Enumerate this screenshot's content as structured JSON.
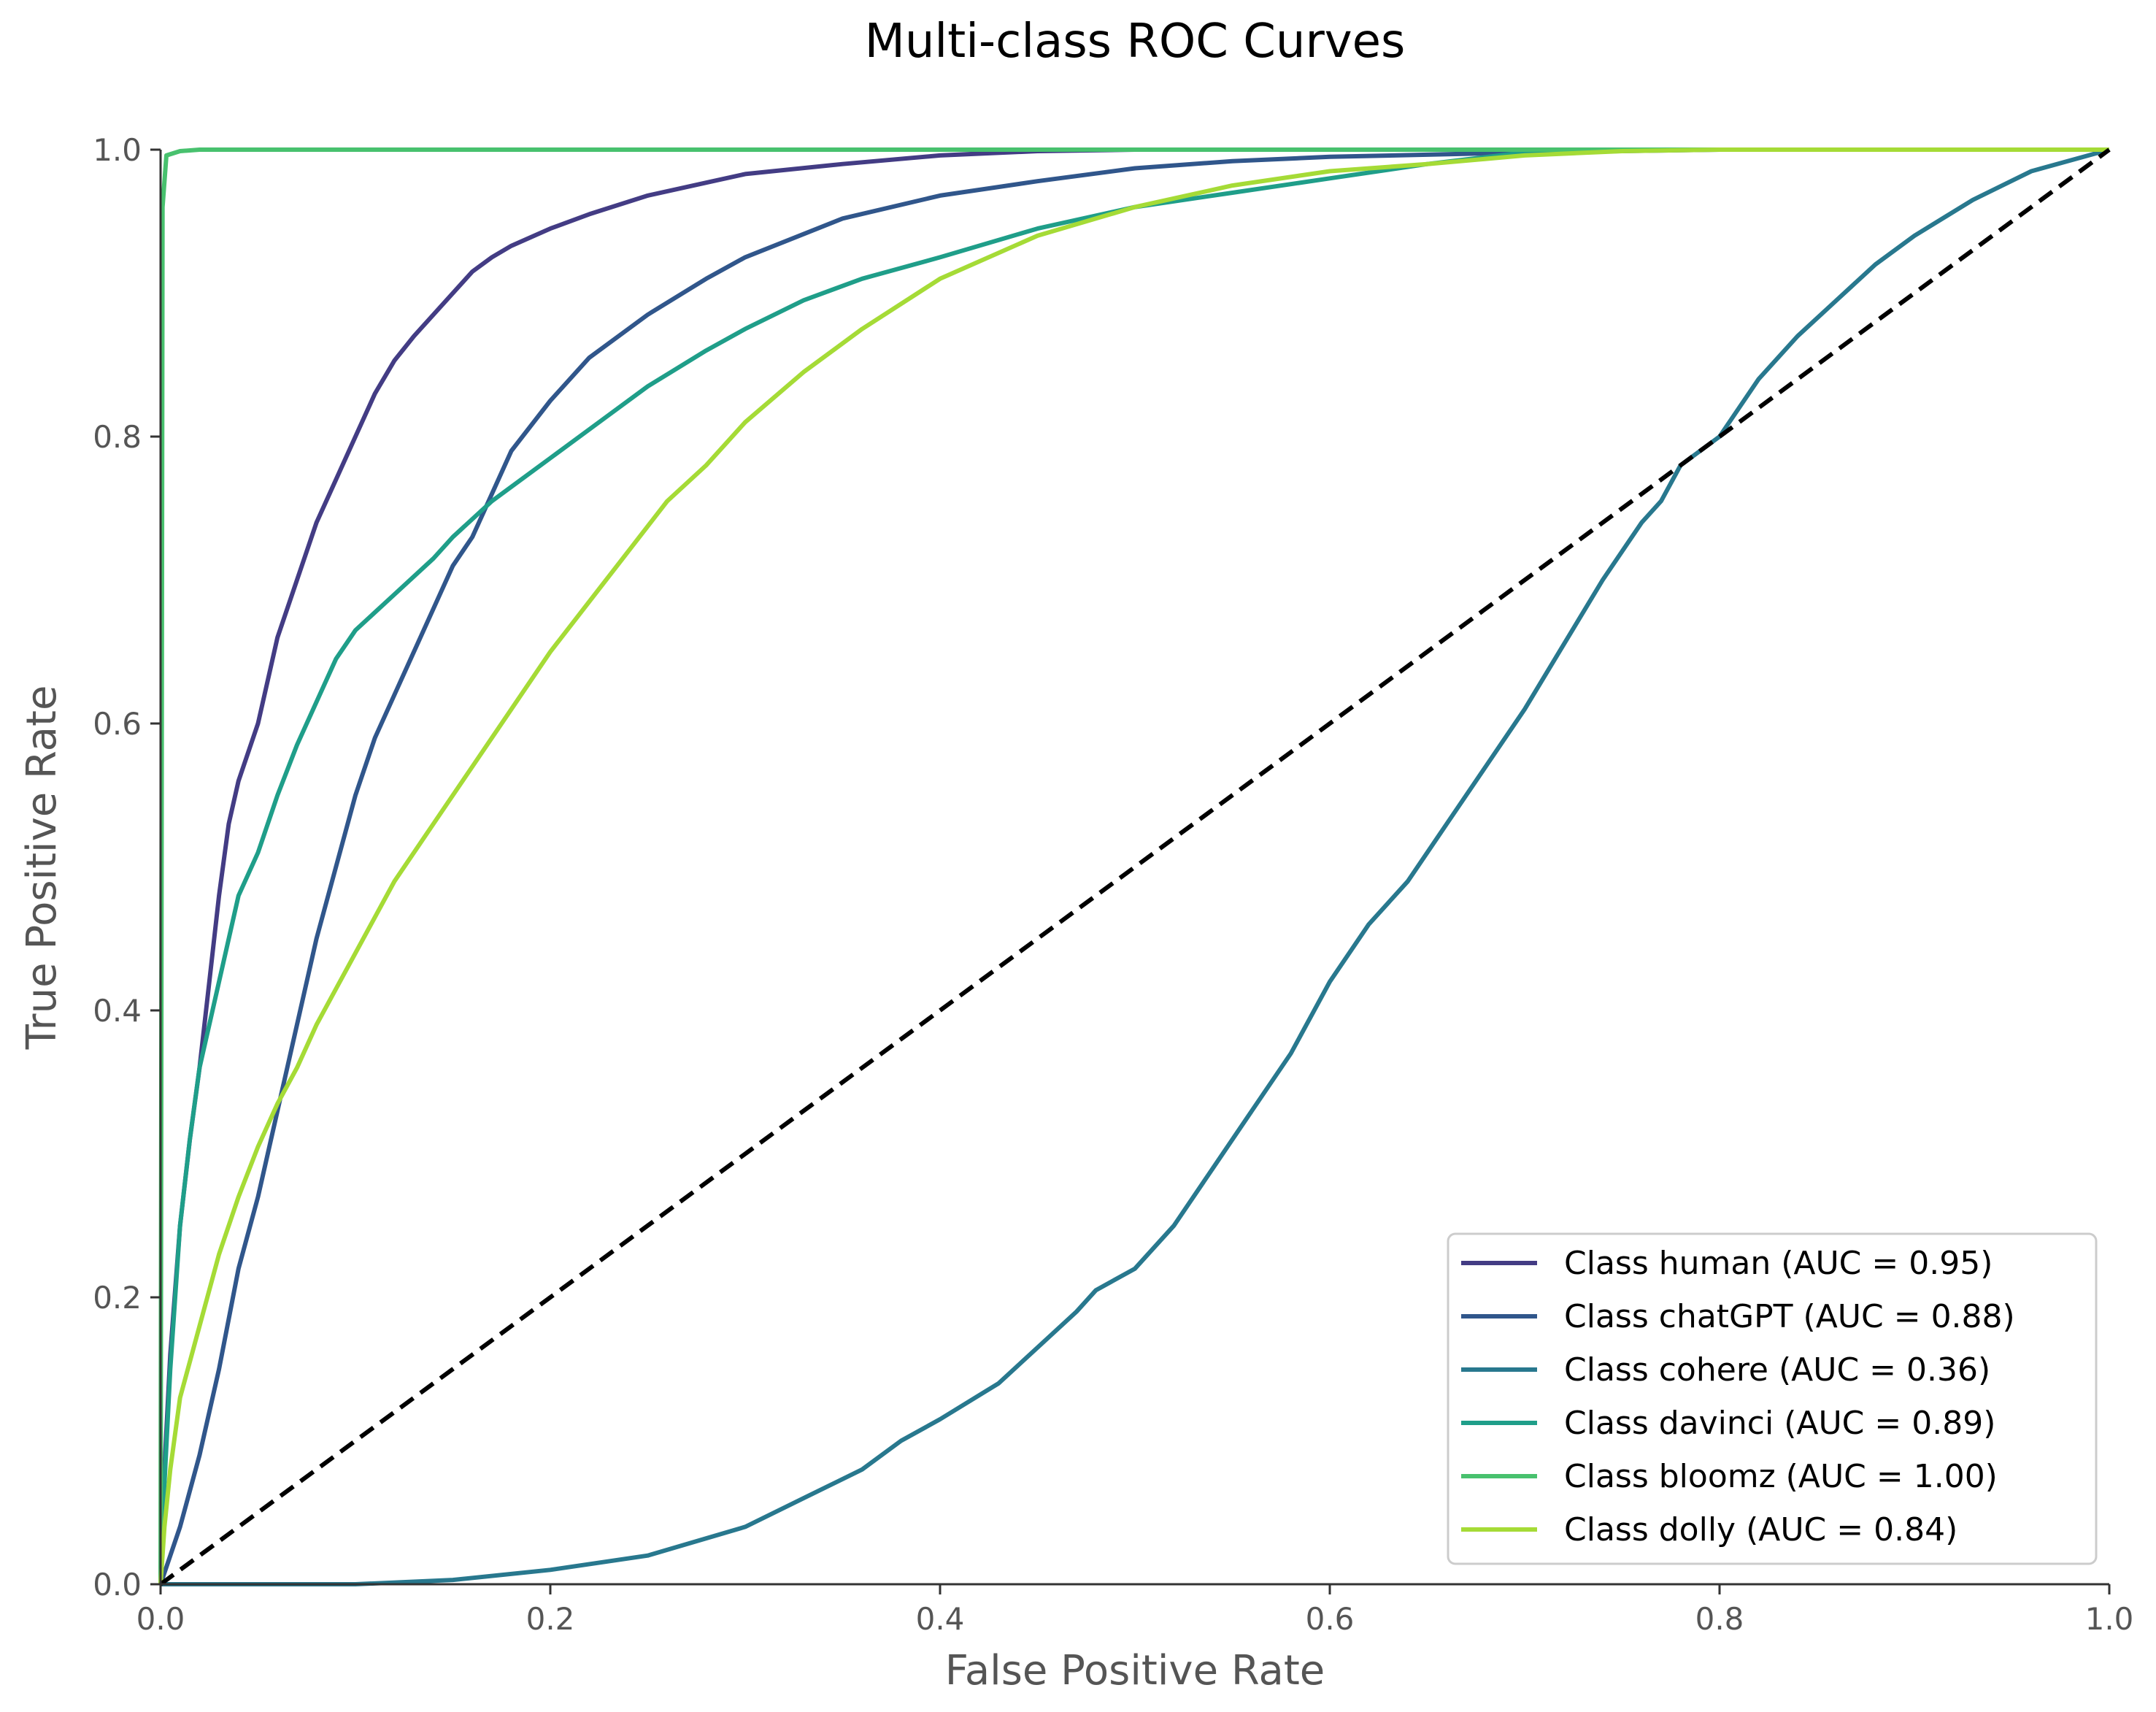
{
  "chart_data": {
    "type": "line",
    "title": "Multi-class ROC Curves",
    "xlabel": "False Positive Rate",
    "ylabel": "True Positive Rate",
    "xlim": [
      0.0,
      1.0
    ],
    "ylim": [
      0.0,
      1.0
    ],
    "xticks": [
      "0.0",
      "0.2",
      "0.4",
      "0.6",
      "0.8",
      "1.0"
    ],
    "yticks": [
      "0.0",
      "0.2",
      "0.4",
      "0.6",
      "0.8",
      "1.0"
    ],
    "grid": false,
    "legend_position": "lower-right",
    "series": [
      {
        "name": "Class human (AUC = 0.95)",
        "color": "#433C84",
        "points": [
          [
            0,
            0
          ],
          [
            0.002,
            0.08
          ],
          [
            0.005,
            0.16
          ],
          [
            0.01,
            0.25
          ],
          [
            0.015,
            0.31
          ],
          [
            0.02,
            0.36
          ],
          [
            0.025,
            0.42
          ],
          [
            0.03,
            0.48
          ],
          [
            0.035,
            0.53
          ],
          [
            0.04,
            0.56
          ],
          [
            0.05,
            0.6
          ],
          [
            0.06,
            0.66
          ],
          [
            0.07,
            0.7
          ],
          [
            0.08,
            0.74
          ],
          [
            0.09,
            0.77
          ],
          [
            0.1,
            0.8
          ],
          [
            0.11,
            0.83
          ],
          [
            0.12,
            0.853
          ],
          [
            0.13,
            0.87
          ],
          [
            0.14,
            0.885
          ],
          [
            0.15,
            0.9
          ],
          [
            0.16,
            0.915
          ],
          [
            0.17,
            0.925
          ],
          [
            0.18,
            0.933
          ],
          [
            0.2,
            0.945
          ],
          [
            0.22,
            0.955
          ],
          [
            0.25,
            0.968
          ],
          [
            0.28,
            0.977
          ],
          [
            0.3,
            0.983
          ],
          [
            0.35,
            0.99
          ],
          [
            0.4,
            0.996
          ],
          [
            0.45,
            0.999
          ],
          [
            0.5,
            1.0
          ],
          [
            1.0,
            1.0
          ]
        ]
      },
      {
        "name": "Class chatGPT (AUC = 0.88)",
        "color": "#30568B",
        "points": [
          [
            0,
            0
          ],
          [
            0.01,
            0.04
          ],
          [
            0.02,
            0.09
          ],
          [
            0.03,
            0.15
          ],
          [
            0.04,
            0.22
          ],
          [
            0.05,
            0.27
          ],
          [
            0.06,
            0.33
          ],
          [
            0.07,
            0.39
          ],
          [
            0.08,
            0.45
          ],
          [
            0.09,
            0.5
          ],
          [
            0.1,
            0.55
          ],
          [
            0.11,
            0.59
          ],
          [
            0.12,
            0.62
          ],
          [
            0.13,
            0.65
          ],
          [
            0.14,
            0.68
          ],
          [
            0.15,
            0.71
          ],
          [
            0.16,
            0.73
          ],
          [
            0.17,
            0.76
          ],
          [
            0.18,
            0.79
          ],
          [
            0.2,
            0.825
          ],
          [
            0.22,
            0.855
          ],
          [
            0.25,
            0.885
          ],
          [
            0.28,
            0.91
          ],
          [
            0.3,
            0.925
          ],
          [
            0.35,
            0.952
          ],
          [
            0.4,
            0.968
          ],
          [
            0.45,
            0.978
          ],
          [
            0.5,
            0.987
          ],
          [
            0.55,
            0.992
          ],
          [
            0.6,
            0.995
          ],
          [
            0.7,
            0.998
          ],
          [
            0.8,
            1.0
          ],
          [
            1.0,
            1.0
          ]
        ]
      },
      {
        "name": "Class cohere (AUC = 0.36)",
        "color": "#28788E",
        "points": [
          [
            0,
            0
          ],
          [
            0.1,
            0.0
          ],
          [
            0.15,
            0.003
          ],
          [
            0.2,
            0.01
          ],
          [
            0.25,
            0.02
          ],
          [
            0.3,
            0.04
          ],
          [
            0.33,
            0.06
          ],
          [
            0.36,
            0.08
          ],
          [
            0.38,
            0.1
          ],
          [
            0.4,
            0.115
          ],
          [
            0.43,
            0.14
          ],
          [
            0.45,
            0.165
          ],
          [
            0.47,
            0.19
          ],
          [
            0.48,
            0.205
          ],
          [
            0.5,
            0.22
          ],
          [
            0.52,
            0.25
          ],
          [
            0.54,
            0.29
          ],
          [
            0.56,
            0.33
          ],
          [
            0.58,
            0.37
          ],
          [
            0.6,
            0.42
          ],
          [
            0.62,
            0.46
          ],
          [
            0.64,
            0.49
          ],
          [
            0.66,
            0.53
          ],
          [
            0.68,
            0.57
          ],
          [
            0.7,
            0.61
          ],
          [
            0.72,
            0.655
          ],
          [
            0.74,
            0.7
          ],
          [
            0.76,
            0.74
          ],
          [
            0.77,
            0.755
          ],
          [
            0.78,
            0.78
          ],
          [
            0.8,
            0.8
          ],
          [
            0.82,
            0.84
          ],
          [
            0.84,
            0.87
          ],
          [
            0.86,
            0.895
          ],
          [
            0.88,
            0.92
          ],
          [
            0.9,
            0.94
          ],
          [
            0.93,
            0.965
          ],
          [
            0.96,
            0.985
          ],
          [
            1.0,
            1.0
          ]
        ]
      },
      {
        "name": "Class davinci (AUC = 0.89)",
        "color": "#1F9E89",
        "points": [
          [
            0,
            0
          ],
          [
            0.002,
            0.07
          ],
          [
            0.005,
            0.15
          ],
          [
            0.01,
            0.25
          ],
          [
            0.015,
            0.31
          ],
          [
            0.02,
            0.36
          ],
          [
            0.03,
            0.42
          ],
          [
            0.04,
            0.48
          ],
          [
            0.05,
            0.51
          ],
          [
            0.06,
            0.55
          ],
          [
            0.07,
            0.585
          ],
          [
            0.08,
            0.615
          ],
          [
            0.09,
            0.645
          ],
          [
            0.1,
            0.665
          ],
          [
            0.12,
            0.69
          ],
          [
            0.14,
            0.715
          ],
          [
            0.15,
            0.73
          ],
          [
            0.17,
            0.755
          ],
          [
            0.2,
            0.785
          ],
          [
            0.23,
            0.815
          ],
          [
            0.25,
            0.835
          ],
          [
            0.28,
            0.86
          ],
          [
            0.3,
            0.875
          ],
          [
            0.33,
            0.895
          ],
          [
            0.36,
            0.91
          ],
          [
            0.4,
            0.925
          ],
          [
            0.45,
            0.945
          ],
          [
            0.5,
            0.96
          ],
          [
            0.55,
            0.97
          ],
          [
            0.6,
            0.98
          ],
          [
            0.65,
            0.99
          ],
          [
            0.7,
            0.998
          ],
          [
            0.75,
            1.0
          ],
          [
            1.0,
            1.0
          ]
        ]
      },
      {
        "name": "Class bloomz (AUC = 1.00)",
        "color": "#48C16E",
        "points": [
          [
            0,
            0
          ],
          [
            0.001,
            0.96
          ],
          [
            0.003,
            0.996
          ],
          [
            0.01,
            0.999
          ],
          [
            0.02,
            1.0
          ],
          [
            1.0,
            1.0
          ]
        ]
      },
      {
        "name": "Class dolly (AUC = 0.84)",
        "color": "#A5DB36",
        "points": [
          [
            0,
            0
          ],
          [
            0.002,
            0.04
          ],
          [
            0.005,
            0.08
          ],
          [
            0.01,
            0.13
          ],
          [
            0.02,
            0.18
          ],
          [
            0.03,
            0.23
          ],
          [
            0.04,
            0.27
          ],
          [
            0.05,
            0.305
          ],
          [
            0.06,
            0.335
          ],
          [
            0.07,
            0.36
          ],
          [
            0.08,
            0.39
          ],
          [
            0.09,
            0.415
          ],
          [
            0.1,
            0.44
          ],
          [
            0.12,
            0.49
          ],
          [
            0.14,
            0.53
          ],
          [
            0.16,
            0.57
          ],
          [
            0.18,
            0.61
          ],
          [
            0.2,
            0.65
          ],
          [
            0.22,
            0.685
          ],
          [
            0.24,
            0.72
          ],
          [
            0.26,
            0.755
          ],
          [
            0.28,
            0.78
          ],
          [
            0.3,
            0.81
          ],
          [
            0.33,
            0.845
          ],
          [
            0.36,
            0.875
          ],
          [
            0.4,
            0.91
          ],
          [
            0.45,
            0.94
          ],
          [
            0.5,
            0.96
          ],
          [
            0.55,
            0.975
          ],
          [
            0.6,
            0.985
          ],
          [
            0.65,
            0.99
          ],
          [
            0.7,
            0.996
          ],
          [
            0.75,
            0.999
          ],
          [
            0.8,
            1.0
          ],
          [
            1.0,
            1.0
          ]
        ]
      }
    ],
    "reference_line": {
      "points": [
        [
          0,
          0
        ],
        [
          1,
          1
        ]
      ],
      "color": "#000000",
      "style": "dashed"
    }
  }
}
